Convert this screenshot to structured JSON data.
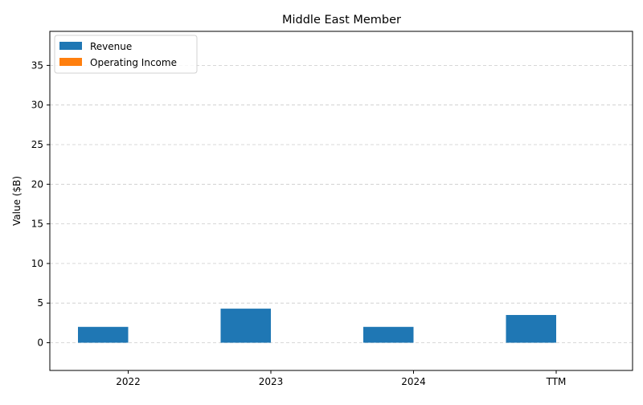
{
  "chart_data": {
    "type": "bar",
    "title": "Middle East Member",
    "xlabel": "",
    "ylabel": "Value ($B)",
    "categories": [
      "2022",
      "2023",
      "2024",
      "TTM"
    ],
    "series": [
      {
        "name": "Revenue",
        "color": "#1f77b4",
        "values": [
          2.0,
          4.3,
          2.0,
          3.5
        ]
      },
      {
        "name": "Operating Income",
        "color": "#ff7f0e",
        "values": [
          0,
          0,
          0,
          0
        ]
      }
    ],
    "ylim": [
      -3.5,
      39.3
    ],
    "yticks": [
      0,
      5,
      10,
      15,
      20,
      25,
      30,
      35
    ],
    "grid": "y-dashed",
    "legend_position": "top-left"
  }
}
